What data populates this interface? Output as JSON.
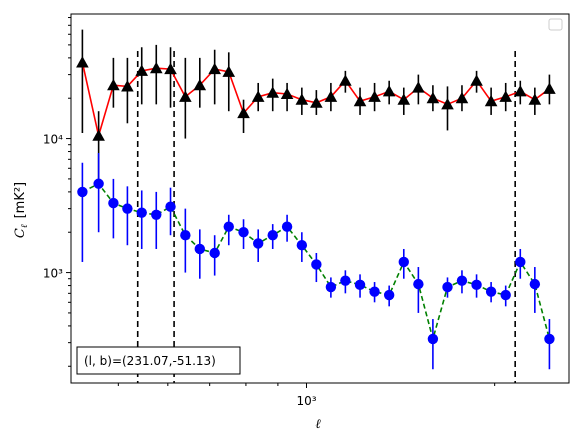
{
  "chart_data": {
    "type": "line",
    "title": "",
    "xlabel": "ℓ",
    "ylabel_main": "C",
    "ylabel_sub": "ℓ",
    "ylabel_unit": "[mK²]",
    "xscale": "log",
    "yscale": "log",
    "xlim": [
      420,
      2630
    ],
    "ylim": [
      150,
      85000
    ],
    "x_tick_label": "10³",
    "y_tick_labels": [
      "10³",
      "10⁴"
    ],
    "vertical_lines": [
      537,
      614,
      2157
    ],
    "annotation": "(l, b)=(231.07,-51.13)",
    "legend": "empty box, top-right",
    "series": [
      {
        "color": "#ff0000",
        "marker": "triangle",
        "marker_color": "#000000",
        "linestyle": "solid",
        "x": [
          438,
          465,
          491,
          517,
          545,
          575,
          606,
          640,
          675,
          713,
          751,
          793,
          837,
          883,
          931,
          983,
          1037,
          1094,
          1154,
          1218,
          1285,
          1356,
          1431,
          1510,
          1593,
          1681,
          1773,
          1871,
          1974,
          2083,
          2198,
          2319,
          2447
        ],
        "values": [
          37000,
          10500,
          25000,
          24500,
          32000,
          33500,
          33000,
          20500,
          25000,
          33000,
          31500,
          15500,
          20500,
          22000,
          21500,
          19500,
          18500,
          20500,
          27000,
          19000,
          20500,
          22500,
          19500,
          24000,
          20000,
          18000,
          20000,
          27000,
          19000,
          20500,
          22500,
          19500,
          23500
        ],
        "err_low": [
          11000,
          5000,
          17000,
          13000,
          18000,
          18000,
          17000,
          10000,
          17000,
          18000,
          16000,
          11000,
          16000,
          16000,
          16000,
          15000,
          15000,
          16000,
          22000,
          15000,
          16000,
          18000,
          15000,
          18000,
          16000,
          11500,
          16000,
          22000,
          15000,
          16000,
          18000,
          15000,
          18000
        ],
        "err_high": [
          65000,
          16000,
          40000,
          40000,
          48000,
          50000,
          48000,
          40000,
          40000,
          46000,
          44000,
          19500,
          26000,
          28000,
          26000,
          24000,
          23000,
          26000,
          32000,
          24000,
          26000,
          27000,
          24000,
          30000,
          25000,
          24500,
          25000,
          32000,
          24000,
          26000,
          27000,
          24000,
          30000
        ]
      },
      {
        "color": "#008000",
        "marker": "circle",
        "marker_color": "#0000ff",
        "linestyle": "dashed",
        "x": [
          438,
          465,
          491,
          517,
          545,
          575,
          606,
          640,
          675,
          713,
          751,
          793,
          837,
          883,
          931,
          983,
          1037,
          1094,
          1154,
          1218,
          1285,
          1356,
          1431,
          1510,
          1593,
          1681,
          1773,
          1871,
          1974,
          2083,
          2198,
          2319,
          2447
        ],
        "values": [
          4000,
          4600,
          3300,
          3000,
          2800,
          2700,
          3100,
          1900,
          1500,
          1400,
          2200,
          2000,
          1650,
          1900,
          2200,
          1600,
          1150,
          780,
          870,
          810,
          720,
          680,
          1200,
          820,
          320,
          780,
          870,
          810,
          720,
          680,
          1200,
          820,
          320
        ],
        "err_low": [
          1200,
          2000,
          1800,
          1600,
          1500,
          1500,
          1900,
          1000,
          900,
          950,
          1600,
          1500,
          1200,
          1500,
          1700,
          1200,
          850,
          650,
          700,
          650,
          600,
          560,
          900,
          500,
          190,
          650,
          700,
          650,
          600,
          560,
          900,
          500,
          190
        ],
        "err_high": [
          6600,
          7800,
          5000,
          4400,
          4100,
          4000,
          4300,
          3000,
          2100,
          1900,
          2700,
          2500,
          2100,
          2300,
          2700,
          2000,
          1400,
          920,
          1040,
          970,
          850,
          800,
          1500,
          1100,
          450,
          920,
          1040,
          970,
          850,
          800,
          1500,
          1100,
          450
        ]
      }
    ]
  }
}
